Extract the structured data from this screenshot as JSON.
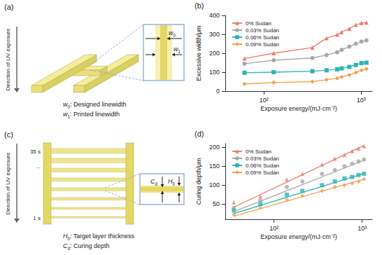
{
  "chart_data": [
    {
      "type": "line",
      "panel": "(b)",
      "x_label": "Exposure energy/(mJ·cm⁻²)",
      "y_label": "Excessive width/μm",
      "log": "x",
      "grid": false,
      "legend": "upper left",
      "xlim": [
        40,
        1300
      ],
      "xticks": [
        {
          "value": 100,
          "label": "10²"
        },
        {
          "value": 1000,
          "label": "10³"
        }
      ],
      "ylim": [
        0,
        400
      ],
      "yticks": [
        0,
        100,
        200,
        300,
        400
      ],
      "x": [
        63,
        126,
        315,
        441,
        567,
        630,
        756,
        882,
        1008,
        1134
      ],
      "series": [
        {
          "name": "0% Sudan",
          "color": "#f07c72",
          "marker": "triangle",
          "values": [
            172,
            200,
            230,
            280,
            298,
            312,
            330,
            350,
            360,
            362
          ]
        },
        {
          "name": "0.03% Sudan",
          "color": "#a8a8a8",
          "marker": "circle",
          "values": [
            145,
            163,
            175,
            190,
            205,
            218,
            235,
            250,
            262,
            268
          ]
        },
        {
          "name": "0.06% Sudan",
          "color": "#2bb5b5",
          "marker": "square",
          "values": [
            97,
            100,
            105,
            110,
            115,
            120,
            128,
            138,
            148,
            150
          ]
        },
        {
          "name": "0.09% Sudan",
          "color": "#f5a04a",
          "marker": "diamond",
          "values": [
            38,
            45,
            50,
            60,
            68,
            75,
            85,
            98,
            110,
            118
          ]
        }
      ]
    },
    {
      "type": "scatter",
      "panel": "(d)",
      "x_label": "Exposure energy/(mJ·cm⁻²)",
      "y_label": "Curing depth/μm",
      "log": "x",
      "grid": false,
      "legend": "upper left",
      "xlim": [
        28,
        1300
      ],
      "xticks": [
        {
          "value": 100,
          "label": "10²"
        },
        {
          "value": 1000,
          "label": "10³"
        }
      ],
      "ylim": [
        10,
        210
      ],
      "yticks": [
        50,
        100,
        150,
        200
      ],
      "x": [
        35,
        70,
        140,
        210,
        350,
        490,
        630,
        770,
        910,
        1050
      ],
      "fit_x": [
        35,
        1050
      ],
      "series": [
        {
          "name": "0% Sudan",
          "color": "#f07c72",
          "marker": "triangle",
          "values": [
            55,
            70,
            115,
            130,
            155,
            170,
            180,
            190,
            197,
            203
          ],
          "fit_values": [
            42,
            205
          ]
        },
        {
          "name": "0.03% Sudan",
          "color": "#a8a8a8",
          "marker": "circle",
          "values": [
            40,
            60,
            95,
            110,
            130,
            140,
            150,
            157,
            163,
            168
          ],
          "fit_values": [
            30,
            166
          ]
        },
        {
          "name": "0.06% Sudan",
          "color": "#2bb5b5",
          "marker": "square",
          "values": [
            33,
            50,
            75,
            85,
            100,
            110,
            118,
            122,
            127,
            130
          ],
          "fit_values": [
            25,
            131
          ]
        },
        {
          "name": "0.09% Sudan",
          "color": "#f5a04a",
          "marker": "diamond",
          "values": [
            22,
            40,
            62,
            72,
            85,
            95,
            100,
            105,
            110,
            116
          ],
          "fit_values": [
            18,
            116
          ]
        }
      ]
    }
  ],
  "diagrams": [
    {
      "panel": "(a)",
      "uv": "Direction of UV exposure",
      "inset": [
        {
          "t": "w",
          "sub": "0"
        },
        {
          "t": "w",
          "sub": "1"
        }
      ],
      "key": [
        {
          "t": "w",
          "sub": "0",
          "text": ": Designed linewidth"
        },
        {
          "t": "w",
          "sub": "1",
          "text": ": Printed linewidth"
        }
      ]
    },
    {
      "panel": "(c)",
      "uv": "Direction of UV exposure",
      "times": [
        "35 s",
        "...",
        "1 s"
      ],
      "inset": [
        {
          "t": "C",
          "sub": "d"
        },
        {
          "t": "H",
          "sub": "0"
        }
      ],
      "key": [
        {
          "t": "H",
          "sub": "0",
          "text": ": Target layer thickness"
        },
        {
          "t": "C",
          "sub": "d",
          "text": ": Curing depth"
        }
      ]
    }
  ]
}
